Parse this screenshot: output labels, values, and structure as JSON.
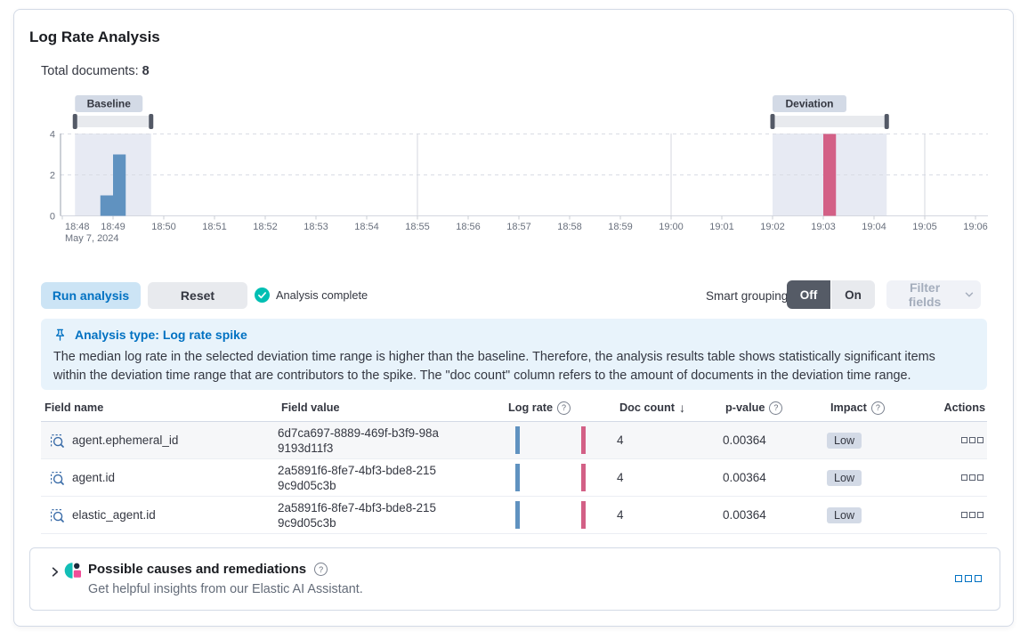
{
  "panel": {
    "title": "Log Rate Analysis",
    "total_documents_label": "Total documents:",
    "total_documents_value": "8"
  },
  "chart_data": {
    "type": "bar",
    "title": "Document count histogram with baseline and deviation brushes",
    "date": "May 7, 2024",
    "x_ticks": [
      "18:48",
      "18:49",
      "18:50",
      "18:51",
      "18:52",
      "18:53",
      "18:54",
      "18:55",
      "18:56",
      "18:57",
      "18:58",
      "18:59",
      "19:00",
      "19:01",
      "19:02",
      "19:03",
      "19:04",
      "19:05",
      "19:06"
    ],
    "major_gridlines": [
      "18:55",
      "19:00",
      "19:05"
    ],
    "y_ticks": [
      0,
      2,
      4
    ],
    "ylim": [
      0,
      4
    ],
    "bucket_minutes": 0.25,
    "buckets": [
      {
        "time": "18:48:45",
        "count": 1,
        "series": "baseline"
      },
      {
        "time": "18:49:00",
        "count": 3,
        "series": "baseline"
      },
      {
        "time": "19:03:00",
        "count": 4,
        "series": "deviation"
      }
    ],
    "windows": [
      {
        "id": "baseline",
        "label": "Baseline",
        "from": "18:48:15",
        "to": "18:49:45"
      },
      {
        "id": "deviation",
        "label": "Deviation",
        "from": "19:02:00",
        "to": "19:04:15"
      }
    ],
    "colors": {
      "baseline_bar": "#6092C0",
      "deviation_bar": "#D36086",
      "window_fill": "#E7EAF3",
      "brush_track": "#E8EAEE",
      "brush_handle": "#535966",
      "badge_bg": "#D3DAE6",
      "badge_text": "#343741",
      "grid_dashed": "#D9DCE4",
      "grid_solid": "#D4D7DF",
      "axis": "#9AA0AC",
      "tick": "#C8CCD5",
      "tick_label": "#69707D"
    }
  },
  "toolbar": {
    "run_button": "Run analysis",
    "reset_button": "Reset",
    "status": "Analysis complete",
    "smart_grouping_label": "Smart grouping",
    "group_off": "Off",
    "group_on": "On",
    "filter_fields": "Filter fields"
  },
  "callout": {
    "title": "Analysis type: Log rate spike",
    "body": "The median log rate in the selected deviation time range is higher than the baseline. Therefore, the analysis results table shows statistically significant items within the deviation time range that are contributors to the spike. The \"doc count\" column refers to the amount of documents in the deviation time range."
  },
  "table": {
    "columns": {
      "field_name": "Field name",
      "field_value": "Field value",
      "log_rate": "Log rate",
      "doc_count": "Doc count",
      "p_value": "p-value",
      "impact": "Impact",
      "actions": "Actions"
    },
    "sort": {
      "column": "doc_count",
      "direction": "desc"
    },
    "rows": [
      {
        "field_name": "agent.ephemeral_id",
        "field_value": "6d7ca697-8889-469f-b3f9-98a9193d11f3",
        "doc_count": "4",
        "p_value": "0.00364",
        "impact": "Low"
      },
      {
        "field_name": "agent.id",
        "field_value": "2a5891f6-8fe7-4bf3-bde8-2159c9d05c3b",
        "doc_count": "4",
        "p_value": "0.00364",
        "impact": "Low"
      },
      {
        "field_name": "elastic_agent.id",
        "field_value": "2a5891f6-8fe7-4bf3-bde8-2159c9d05c3b",
        "doc_count": "4",
        "p_value": "0.00364",
        "impact": "Low"
      }
    ]
  },
  "causes_panel": {
    "title": "Possible causes and remediations",
    "subtitle": "Get helpful insights from our Elastic AI Assistant."
  }
}
